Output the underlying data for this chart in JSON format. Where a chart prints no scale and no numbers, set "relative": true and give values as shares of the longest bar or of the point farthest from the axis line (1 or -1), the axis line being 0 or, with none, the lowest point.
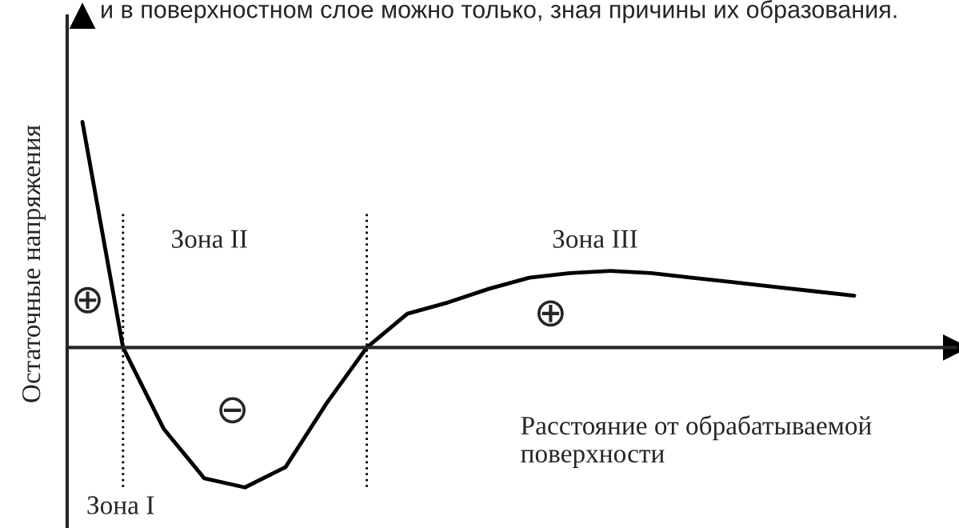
{
  "chart_data": {
    "type": "line",
    "relative": true,
    "categories": [
      null,
      null,
      null,
      null,
      null,
      null,
      null,
      null,
      null,
      null,
      null,
      null,
      null,
      null,
      null,
      null,
      null,
      null,
      null,
      null
    ],
    "values": [
      1.0,
      0.0,
      -0.36,
      -0.58,
      -0.62,
      -0.53,
      -0.25,
      0.0,
      0.15,
      0.2,
      0.26,
      0.31,
      0.33,
      0.34,
      0.33,
      0.31,
      0.29,
      0.27,
      0.25,
      0.23
    ],
    "color": "#000000",
    "line_style": "solid",
    "xlabel": "Расстояние от обрабатываемой\nповерхности",
    "ylabel": "Остаточные напряжения",
    "annotations": [
      "и в поверхностном слое можно только, зная причины их образования.",
      "Зона I",
      "Зона II",
      "Зона III",
      "⊕",
      "⊖",
      "⊕"
    ]
  }
}
